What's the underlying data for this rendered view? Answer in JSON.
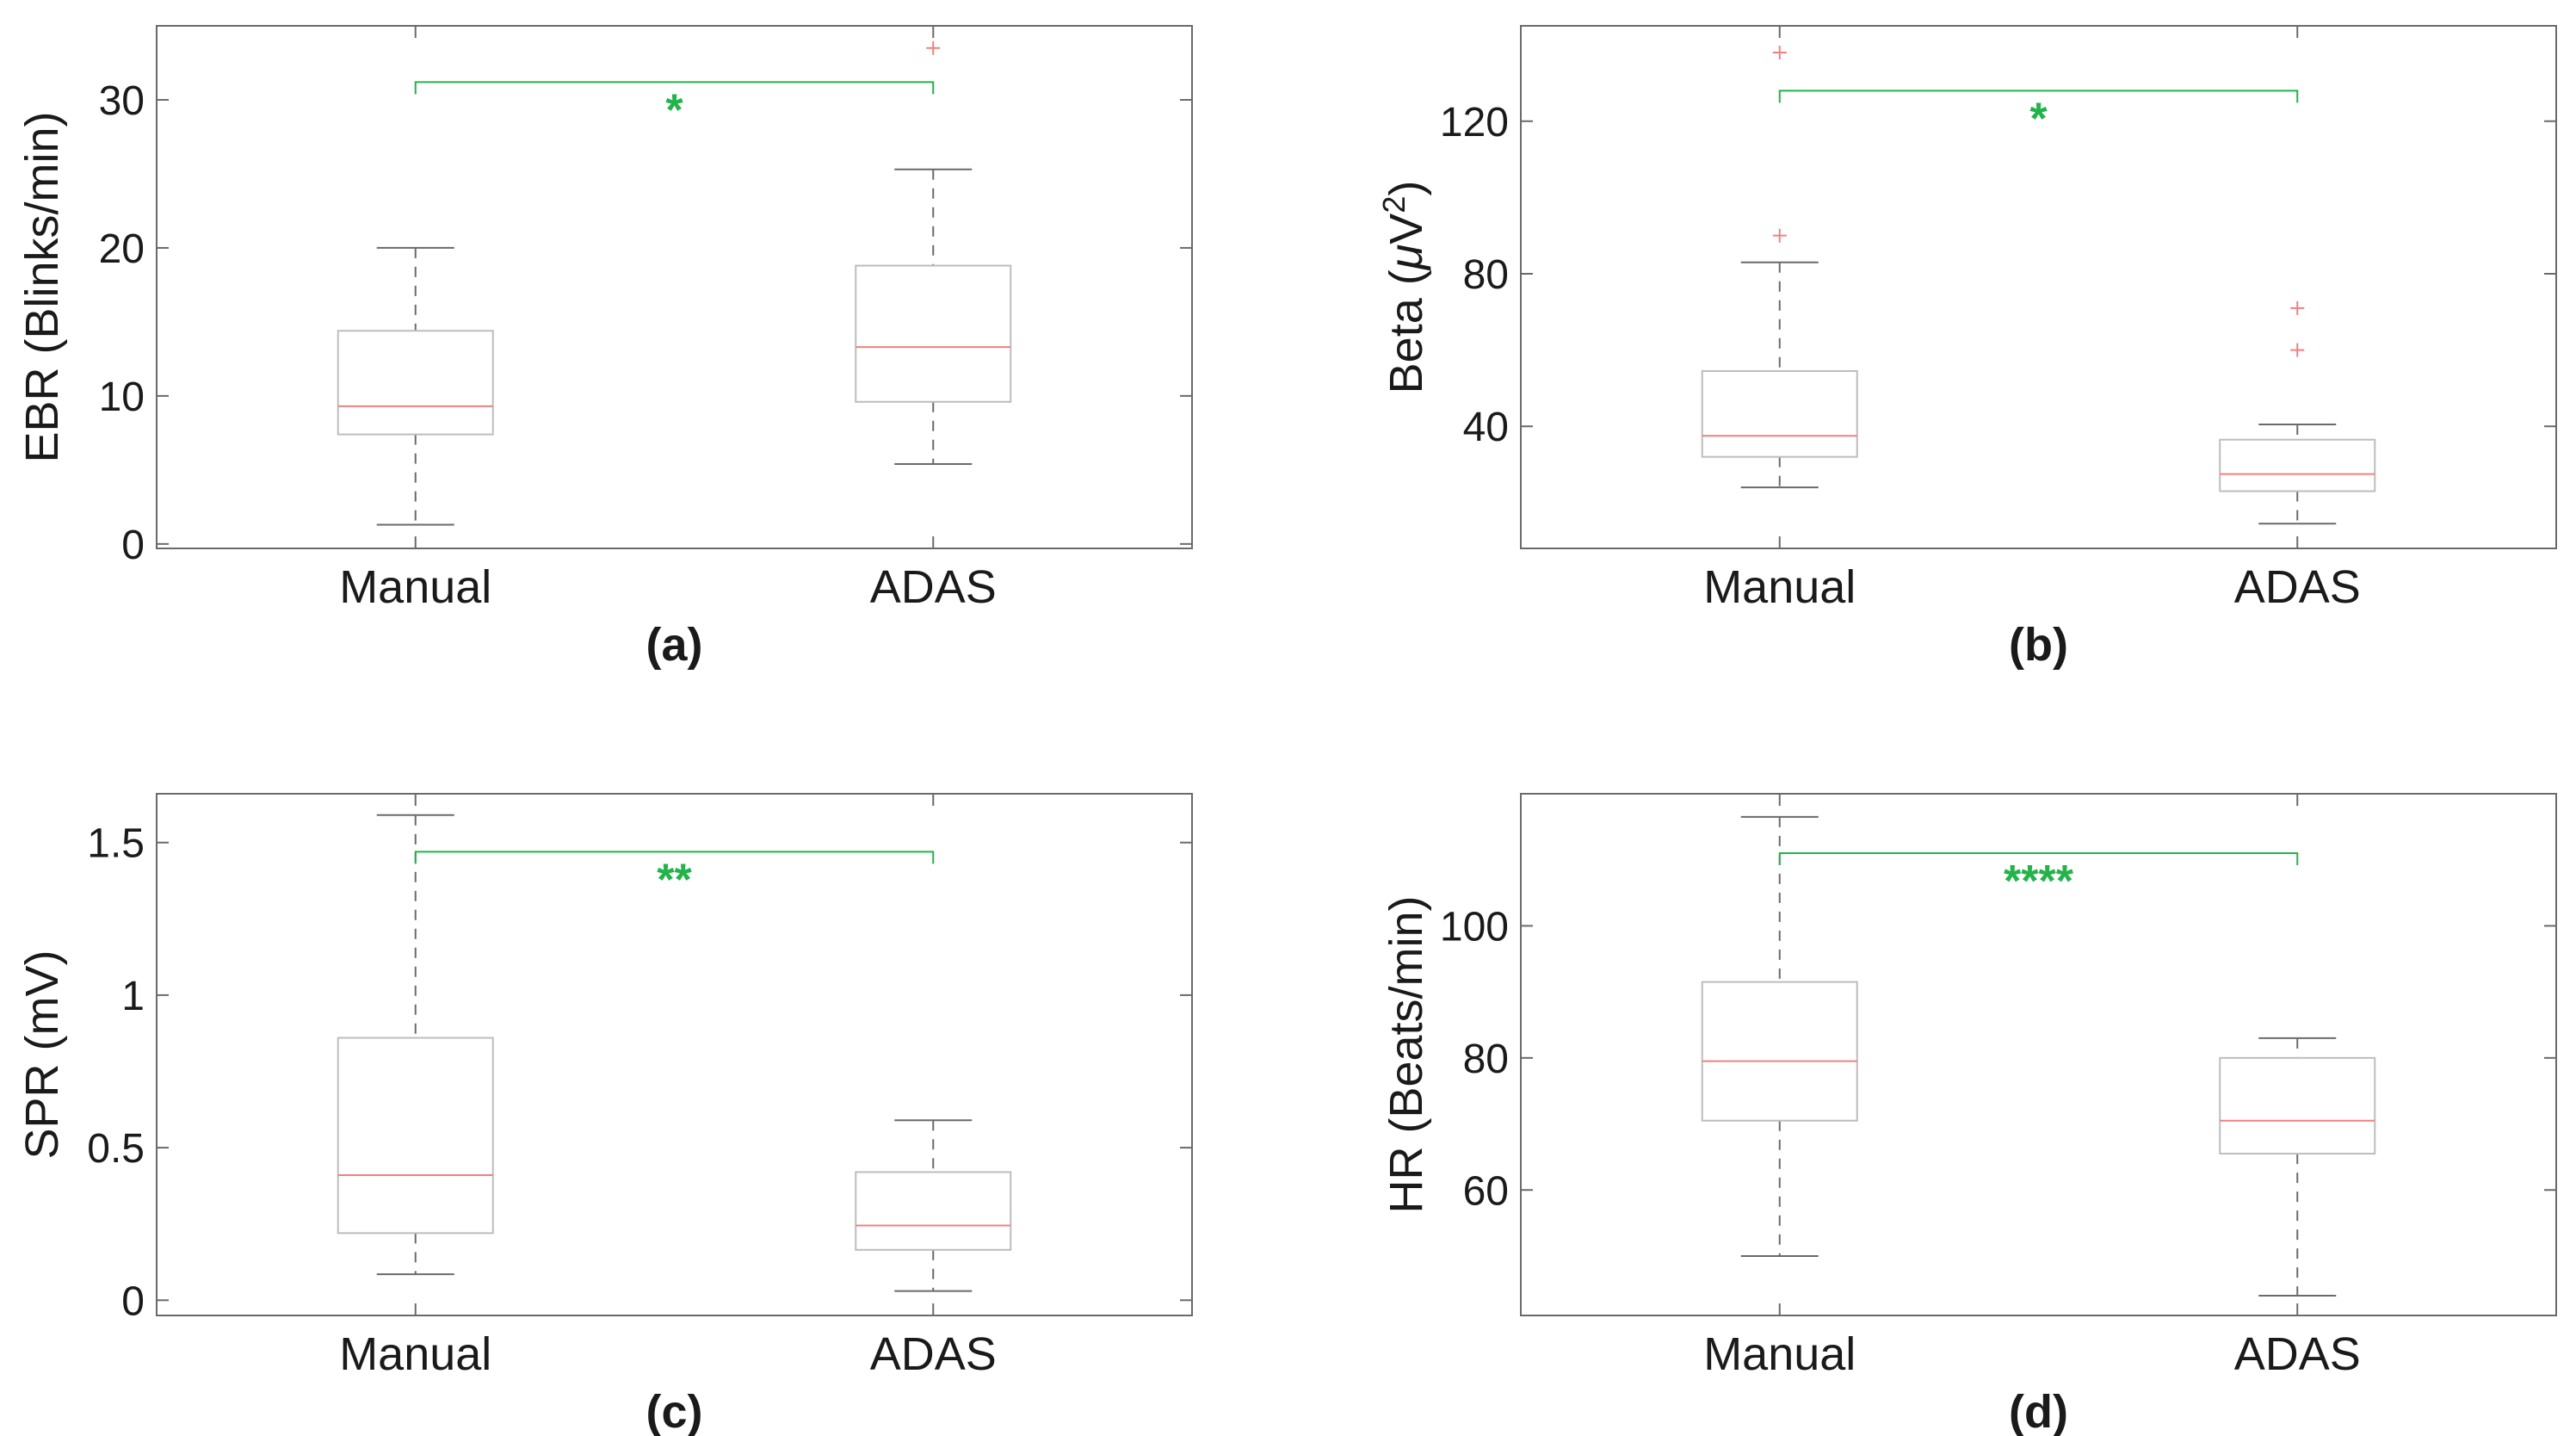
{
  "colors": {
    "box": "#bdbdbd",
    "whisker": "#6a6a6a",
    "median": "#f08080",
    "outlier": "#f08080",
    "significance": "#22b34a",
    "axis": "#6a6a6a",
    "text": "#1a1a1a"
  },
  "chart_data": [
    {
      "panel": "(a)",
      "type": "box",
      "ylabel": "EBR (Blinks/min)",
      "ylim": [
        -0.3,
        35
      ],
      "yticks": [
        0,
        10,
        20,
        30
      ],
      "ytick_labels": [
        "0",
        "10",
        "20",
        "30"
      ],
      "categories": [
        "Manual",
        "ADAS"
      ],
      "boxes": [
        {
          "name": "Manual",
          "min": 1.3,
          "q1": 7.4,
          "median": 9.3,
          "q3": 14.4,
          "max": 20.0,
          "outliers": []
        },
        {
          "name": "ADAS",
          "min": 5.4,
          "q1": 9.6,
          "median": 13.3,
          "q3": 18.8,
          "max": 25.3,
          "outliers": [
            33.5
          ]
        }
      ],
      "significance": {
        "label": "*",
        "y": 31.2
      }
    },
    {
      "panel": "(b)",
      "type": "box",
      "ylabel": "Beta (μV²)",
      "ylabel_main": "Beta (",
      "ylabel_mu": "μ",
      "ylabel_v": "V",
      "ylabel_sup": "2",
      "ylabel_close": ")",
      "ylim": [
        8,
        145
      ],
      "yticks": [
        40,
        80,
        120
      ],
      "ytick_labels": [
        "40",
        "80",
        "120"
      ],
      "categories": [
        "Manual",
        "ADAS"
      ],
      "boxes": [
        {
          "name": "Manual",
          "min": 24,
          "q1": 32,
          "median": 37.5,
          "q3": 54.5,
          "max": 83,
          "outliers": [
            90,
            138
          ]
        },
        {
          "name": "ADAS",
          "min": 14.5,
          "q1": 23,
          "median": 27.5,
          "q3": 36.5,
          "max": 40.5,
          "outliers": [
            60,
            71
          ]
        }
      ],
      "significance": {
        "label": "*",
        "y": 128
      }
    },
    {
      "panel": "(c)",
      "type": "box",
      "ylabel": "SPR (mV)",
      "ylim": [
        -0.05,
        1.66
      ],
      "yticks": [
        0,
        0.5,
        1,
        1.5
      ],
      "ytick_labels": [
        "0",
        "0.5",
        "1",
        "1.5"
      ],
      "categories": [
        "Manual",
        "ADAS"
      ],
      "boxes": [
        {
          "name": "Manual",
          "min": 0.085,
          "q1": 0.22,
          "median": 0.41,
          "q3": 0.86,
          "max": 1.59,
          "outliers": []
        },
        {
          "name": "ADAS",
          "min": 0.03,
          "q1": 0.165,
          "median": 0.245,
          "q3": 0.42,
          "max": 0.59,
          "outliers": []
        }
      ],
      "significance": {
        "label": "**",
        "y": 1.47
      }
    },
    {
      "panel": "(d)",
      "type": "box",
      "ylabel": "HR (Beats/min)",
      "ylim": [
        41,
        120
      ],
      "yticks": [
        60,
        80,
        100
      ],
      "ytick_labels": [
        "60",
        "80",
        "100"
      ],
      "categories": [
        "Manual",
        "ADAS"
      ],
      "boxes": [
        {
          "name": "Manual",
          "min": 50,
          "q1": 70.5,
          "median": 79.5,
          "q3": 91.5,
          "max": 116.5,
          "outliers": []
        },
        {
          "name": "ADAS",
          "min": 44,
          "q1": 65.5,
          "median": 70.5,
          "q3": 80,
          "max": 83,
          "outliers": []
        }
      ],
      "significance": {
        "label": "****",
        "y": 111
      }
    }
  ]
}
